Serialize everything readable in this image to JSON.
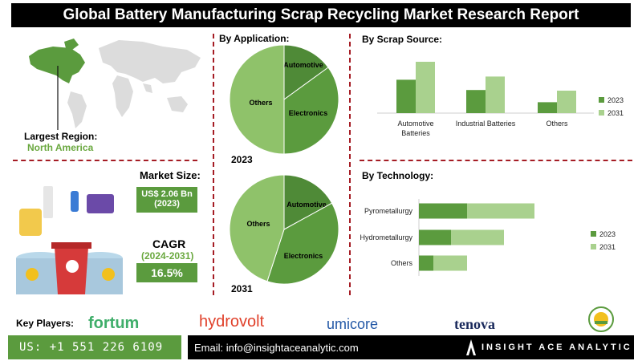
{
  "title": "Global Battery Manufacturing Scrap Recycling Market Research Report",
  "region": {
    "label": "Largest Region:",
    "value": "North America"
  },
  "market_size": {
    "label": "Market Size:",
    "value": "US$ 2.06 Bn",
    "year": "(2023)"
  },
  "cagr": {
    "label": "CAGR",
    "period": "(2024-2031)",
    "value": "16.5%"
  },
  "sections": {
    "application": "By Application:",
    "scrap": "By  Scrap Source:",
    "technology": "By Technology:"
  },
  "key_players_label": "Key Players:",
  "players": [
    "fortum",
    "hydrovolt",
    "umicore",
    "tenova"
  ],
  "footer": {
    "phone": "US: +1 551 226 6109",
    "email": "Email: info@insightaceanalytic.com",
    "brand": "INSIGHT ACE ANALYTIC"
  },
  "colors": {
    "dark_green": "#5b9b3e",
    "light_green": "#a9d18e",
    "pie_light": "#8fc26a",
    "pie_dark": "#4f8a37",
    "accent_red": "#a51c24"
  },
  "chart_data": [
    {
      "type": "pie",
      "title": "2023",
      "labels": [
        "Automotive",
        "Electronics",
        "Others"
      ],
      "values": [
        15,
        35,
        50
      ]
    },
    {
      "type": "pie",
      "title": "2031",
      "labels": [
        "Automotive",
        "Electronics",
        "Others"
      ],
      "values": [
        17,
        38,
        45
      ]
    },
    {
      "type": "bar",
      "categories": [
        "Automotive\nBatteries",
        "Industrial Batteries",
        "Others"
      ],
      "series": [
        {
          "name": "2023",
          "values": [
            52,
            36,
            17
          ]
        },
        {
          "name": "2031",
          "values": [
            80,
            57,
            35
          ]
        }
      ],
      "ylim": [
        0,
        100
      ],
      "legend": "right"
    },
    {
      "type": "bar",
      "orientation": "horizontal",
      "categories": [
        "Pyrometallurgy",
        "Hydrometallurgy",
        "Others"
      ],
      "series": [
        {
          "name": "2023",
          "values": [
            30,
            20,
            9
          ]
        },
        {
          "name": "2031",
          "values": [
            42,
            33,
            21
          ]
        }
      ],
      "xlim": [
        0,
        100
      ],
      "stacked": true,
      "legend": "right"
    }
  ]
}
